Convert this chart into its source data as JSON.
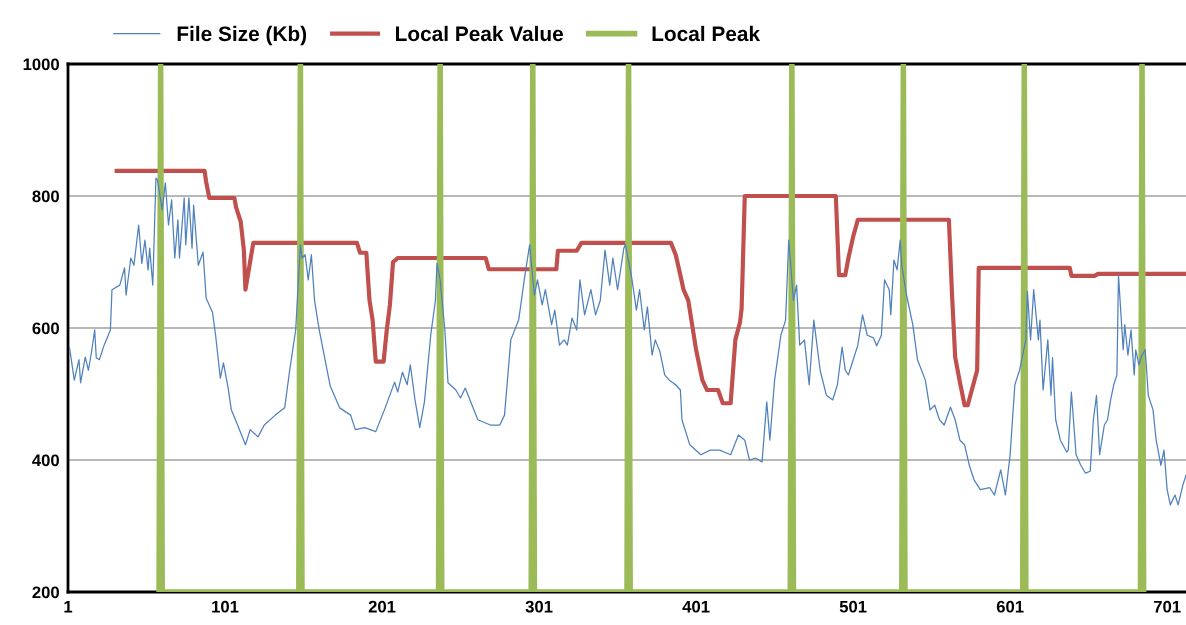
{
  "chart_data": {
    "type": "line",
    "x": [
      2,
      5,
      8,
      9,
      12,
      14,
      16,
      18,
      19,
      21,
      24,
      28,
      29,
      34,
      37,
      38,
      41,
      43,
      46,
      48,
      50,
      52,
      53,
      55,
      57,
      58,
      61,
      63,
      65,
      67,
      69,
      71,
      72,
      75,
      76,
      78,
      80,
      81,
      84,
      87,
      89,
      93,
      95,
      98,
      100,
      103,
      105,
      109,
      114,
      117,
      122,
      126,
      133,
      139,
      142,
      146,
      149,
      150,
      152,
      154,
      156,
      158,
      161,
      168,
      174,
      181,
      184,
      190,
      197,
      203,
      209,
      211,
      214,
      217,
      219,
      222,
      225,
      228,
      232,
      235,
      236,
      238,
      241,
      243,
      248,
      251,
      254,
      257,
      262,
      270,
      276,
      279,
      283,
      288,
      292,
      295,
      298,
      300,
      303,
      305,
      309,
      311,
      314,
      317,
      319,
      322,
      325,
      327,
      330,
      334,
      337,
      340,
      343,
      346,
      348,
      351,
      355,
      356,
      360,
      363,
      365,
      368,
      370,
      373,
      375,
      378,
      381,
      384,
      388,
      391,
      392,
      397,
      404,
      410,
      416,
      423,
      428,
      432,
      435,
      439,
      443,
      446,
      448,
      451,
      455,
      458,
      460,
      463,
      465,
      467,
      470,
      473,
      476,
      480,
      484,
      488,
      491,
      494,
      496,
      498,
      500,
      504,
      507,
      510,
      514,
      516,
      519,
      521,
      524,
      525,
      527,
      529,
      531,
      532,
      535,
      539,
      542,
      547,
      550,
      553,
      556,
      559,
      563,
      566,
      569,
      572,
      575,
      578,
      582,
      588,
      591,
      595,
      598,
      601,
      604,
      607,
      611,
      612,
      614,
      616,
      619,
      620,
      622,
      625,
      627,
      628,
      630,
      633,
      637,
      638,
      640,
      643,
      646,
      649,
      652,
      654,
      656,
      658,
      661,
      663,
      665,
      667,
      669,
      670,
      673,
      674,
      676,
      678,
      680,
      681,
      683,
      685,
      687,
      689,
      692,
      694,
      697,
      699,
      701,
      703,
      706,
      708,
      711,
      713
    ],
    "series": [
      {
        "name": "File Size (Kb)",
        "color": "#4f81bd",
        "values": [
          570,
          521,
          552,
          517,
          556,
          536,
          564,
          597,
          555,
          552,
          574,
          597,
          658,
          665,
          691,
          650,
          706,
          695,
          756,
          698,
          733,
          688,
          721,
          665,
          827,
          824,
          779,
          820,
          756,
          794,
          706,
          764,
          706,
          797,
          726,
          797,
          721,
          786,
          695,
          715,
          645,
          624,
          589,
          524,
          547,
          509,
          476,
          453,
          423,
          446,
          435,
          453,
          468,
          479,
          533,
          597,
          726,
          706,
          711,
          673,
          711,
          642,
          597,
          512,
          479,
          468,
          446,
          449,
          443,
          479,
          518,
          503,
          533,
          514,
          544,
          491,
          449,
          488,
          589,
          642,
          698,
          673,
          597,
          517,
          506,
          494,
          509,
          491,
          461,
          453,
          453,
          468,
          582,
          612,
          680,
          726,
          650,
          673,
          635,
          658,
          605,
          627,
          574,
          582,
          574,
          615,
          597,
          673,
          620,
          658,
          620,
          642,
          718,
          665,
          706,
          658,
          721,
          726,
          676,
          627,
          658,
          597,
          632,
          559,
          582,
          564,
          529,
          521,
          514,
          506,
          461,
          423,
          408,
          415,
          415,
          408,
          438,
          430,
          400,
          403,
          397,
          488,
          430,
          521,
          589,
          612,
          733,
          642,
          665,
          574,
          582,
          514,
          612,
          536,
          498,
          491,
          514,
          571,
          536,
          529,
          544,
          574,
          620,
          589,
          585,
          573,
          589,
          673,
          658,
          620,
          703,
          688,
          733,
          695,
          650,
          605,
          552,
          521,
          476,
          483,
          461,
          453,
          480,
          461,
          430,
          423,
          392,
          370,
          355,
          358,
          347,
          385,
          347,
          408,
          514,
          536,
          582,
          655,
          582,
          658,
          582,
          612,
          506,
          582,
          498,
          555,
          461,
          430,
          412,
          415,
          503,
          408,
          392,
          380,
          383,
          461,
          498,
          408,
          453,
          461,
          491,
          514,
          529,
          680,
          567,
          605,
          559,
          597,
          529,
          567,
          544,
          559,
          567,
          498,
          476,
          430,
          392,
          415,
          355,
          332,
          347,
          332,
          362,
          377
        ]
      },
      {
        "name": "Local Peak Value",
        "color": "#c0504d",
        "x": [
          32,
          88,
          89,
          91,
          107,
          108,
          111,
          113,
          114,
          119,
          185,
          187,
          191,
          193,
          195,
          197,
          202,
          204,
          206,
          208,
          211,
          267,
          269,
          312,
          313,
          325,
          328,
          385,
          388,
          391,
          393,
          396,
          401,
          405,
          408,
          415,
          418,
          423,
          426,
          429,
          430,
          432,
          490,
          492,
          496,
          498,
          501,
          504,
          562,
          564,
          566,
          569,
          572,
          574,
          580,
          581,
          639,
          640,
          655,
          657,
          713
        ],
        "values": [
          838,
          838,
          821,
          797,
          797,
          783,
          761,
          718,
          658,
          729,
          729,
          714,
          714,
          642,
          612,
          549,
          549,
          597,
          635,
          700,
          706,
          706,
          689,
          689,
          717,
          717,
          729,
          729,
          711,
          680,
          658,
          642,
          567,
          521,
          506,
          506,
          486,
          486,
          582,
          609,
          630,
          800,
          800,
          680,
          680,
          706,
          738,
          764,
          764,
          650,
          556,
          518,
          483,
          483,
          536,
          691,
          691,
          679,
          679,
          682,
          682
        ]
      },
      {
        "name": "Local Peak",
        "color": "#9bbb59",
        "x": [
          59,
          60,
          61,
          148,
          149,
          150,
          237,
          238,
          239,
          296,
          297,
          298,
          357,
          358,
          359,
          461,
          462,
          463,
          532,
          533,
          534,
          609,
          610,
          611,
          684,
          685,
          686
        ],
        "values": [
          200,
          1000,
          200,
          200,
          1000,
          200,
          200,
          1000,
          200,
          200,
          1000,
          200,
          200,
          1000,
          200,
          200,
          1000,
          200,
          200,
          1000,
          200,
          200,
          1000,
          200,
          200,
          1000,
          200
        ]
      }
    ],
    "xlim": [
      1,
      713
    ],
    "xticks": [
      1,
      101,
      201,
      301,
      401,
      501,
      601,
      701
    ],
    "ylim": [
      200,
      1000
    ],
    "yticks": [
      200,
      400,
      600,
      800,
      1000
    ],
    "grid": "y",
    "legend": "top",
    "marker": "none",
    "line_style": "solid"
  }
}
